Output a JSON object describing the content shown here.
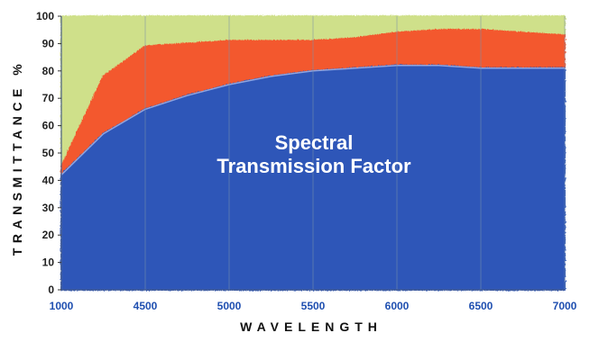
{
  "chart_data": {
    "type": "area",
    "title": "Spectral Transmission Factor",
    "title_lines": [
      "Spectral",
      "Transmission Factor"
    ],
    "xlabel": "WAVELENGTH",
    "ylabel": "TRANSMITTANCE %",
    "x_ticks": [
      "1000",
      "4500",
      "5000",
      "5500",
      "6000",
      "6500",
      "7000"
    ],
    "y_ticks": [
      "0",
      "10",
      "20",
      "30",
      "40",
      "50",
      "60",
      "70",
      "80",
      "90",
      "100"
    ],
    "ylim": [
      0,
      100
    ],
    "grid": true,
    "style": "hand-drawn crayon stacked bands",
    "series": [
      {
        "color": "#2f56b8",
        "points": [
          [
            "1000",
            42
          ],
          [
            "2750",
            57
          ],
          [
            "4500",
            66
          ],
          [
            "4750",
            71
          ],
          [
            "5000",
            75
          ],
          [
            "5250",
            78
          ],
          [
            "5500",
            80
          ],
          [
            "5750",
            81
          ],
          [
            "6000",
            82
          ],
          [
            "6250",
            82
          ],
          [
            "6500",
            81
          ],
          [
            "6750",
            81
          ],
          [
            "7000",
            81
          ]
        ]
      },
      {
        "color": "#f3582e",
        "points": [
          [
            "1000",
            45
          ],
          [
            "2750",
            78
          ],
          [
            "4500",
            89
          ],
          [
            "4750",
            90
          ],
          [
            "5000",
            91
          ],
          [
            "5250",
            91
          ],
          [
            "5500",
            91
          ],
          [
            "5750",
            92
          ],
          [
            "6000",
            94
          ],
          [
            "6250",
            95
          ],
          [
            "6500",
            95
          ],
          [
            "6750",
            94
          ],
          [
            "7000",
            93
          ]
        ]
      },
      {
        "color": "#cfe08a",
        "points": [
          [
            "1000",
            100
          ],
          [
            "7000",
            100
          ]
        ]
      }
    ]
  }
}
